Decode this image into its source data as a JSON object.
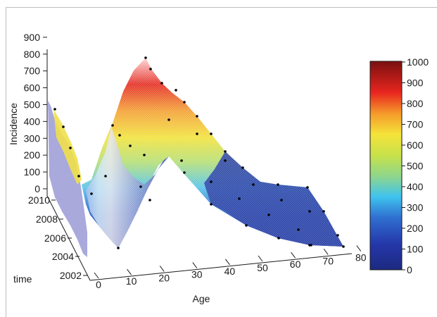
{
  "chart_data": {
    "type": "surface",
    "title": "",
    "xlabel": "Age",
    "ylabel": "time",
    "zlabel": "Incidence",
    "x_ticks": [
      "0",
      "10",
      "20",
      "30",
      "40",
      "50",
      "60",
      "70",
      "80"
    ],
    "y_ticks": [
      "2002",
      "2004",
      "2006",
      "2008",
      "2010"
    ],
    "z_ticks": [
      "0",
      "100",
      "200",
      "300",
      "400",
      "500",
      "600",
      "700",
      "800",
      "900"
    ],
    "xlim": [
      0,
      80
    ],
    "ylim": [
      2002,
      2010
    ],
    "zlim": [
      0,
      900
    ],
    "colorbar": {
      "ticks": [
        "0",
        "100",
        "200",
        "300",
        "400",
        "500",
        "600",
        "700",
        "800",
        "900",
        "1000"
      ],
      "range": [
        0,
        1000
      ],
      "colormap": "jet",
      "colors": [
        "#00007f",
        "#0000ff",
        "#007fff",
        "#00ffff",
        "#7fff7f",
        "#ffff00",
        "#ff7f00",
        "#ff0000",
        "#7f0000"
      ]
    },
    "series": [
      {
        "x": [
          0,
          5,
          10,
          15,
          20,
          25,
          30,
          35,
          40,
          45,
          50,
          55,
          60,
          65,
          70,
          75
        ],
        "z_year_2010": [
          500,
          420,
          120,
          150,
          330,
          790,
          720,
          560,
          420,
          310,
          250,
          220,
          190,
          160,
          120,
          80
        ],
        "z_year_2002": [
          380,
          300,
          40,
          20,
          60,
          350,
          560,
          480,
          340,
          230,
          170,
          130,
          100,
          80,
          60,
          40
        ]
      }
    ]
  }
}
